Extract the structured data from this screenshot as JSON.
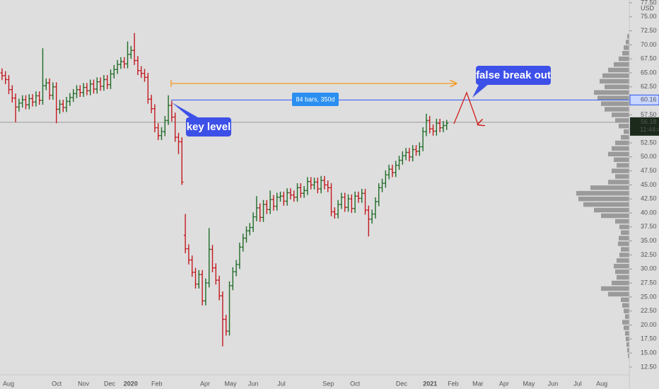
{
  "chart_data": {
    "type": "ohlc",
    "currency": "USD",
    "clock": "11:44:49",
    "up_color": "#1f6b27",
    "down_color": "#c2191f",
    "xlim": [
      -0.6,
      184.8
    ],
    "ylim": [
      11.1,
      78.0
    ],
    "xticks": [
      {
        "value": 1.9,
        "label": "Aug"
      },
      {
        "value": 16.1,
        "label": "Oct"
      },
      {
        "value": 24.0,
        "label": "Nov"
      },
      {
        "value": 31.7,
        "label": "Dec"
      },
      {
        "value": 37.9,
        "label": "2020"
      },
      {
        "value": 45.6,
        "label": "Feb"
      },
      {
        "value": 59.8,
        "label": "Apr"
      },
      {
        "value": 67.3,
        "label": "May"
      },
      {
        "value": 74.0,
        "label": "Jun"
      },
      {
        "value": 82.3,
        "label": "Jul"
      },
      {
        "value": 96.1,
        "label": "Sep"
      },
      {
        "value": 104.0,
        "label": "Oct"
      },
      {
        "value": 117.7,
        "label": "Dec"
      },
      {
        "value": 126.1,
        "label": "2021"
      },
      {
        "value": 132.9,
        "label": "Feb"
      },
      {
        "value": 140.2,
        "label": "Mar"
      },
      {
        "value": 147.9,
        "label": "Apr"
      },
      {
        "value": 155.2,
        "label": "May"
      },
      {
        "value": 162.3,
        "label": "Jun"
      },
      {
        "value": 169.6,
        "label": "Jul"
      },
      {
        "value": 176.7,
        "label": "Aug"
      }
    ],
    "yticks": [
      {
        "value": 12.5,
        "label": "12.50"
      },
      {
        "value": 15,
        "label": "15.00"
      },
      {
        "value": 17.5,
        "label": "17.50"
      },
      {
        "value": 20,
        "label": "20.00"
      },
      {
        "value": 22.5,
        "label": "22.50"
      },
      {
        "value": 25,
        "label": "25.00"
      },
      {
        "value": 27.5,
        "label": "27.50"
      },
      {
        "value": 30,
        "label": "30.00"
      },
      {
        "value": 32.5,
        "label": "32.50"
      },
      {
        "value": 35,
        "label": "35.00"
      },
      {
        "value": 37.5,
        "label": "37.50"
      },
      {
        "value": 40,
        "label": "40.00"
      },
      {
        "value": 42.5,
        "label": "42.50"
      },
      {
        "value": 45,
        "label": "45.00"
      },
      {
        "value": 47.5,
        "label": "47.50"
      },
      {
        "value": 50,
        "label": "50.00"
      },
      {
        "value": 52.5,
        "label": "52.50"
      },
      {
        "value": 55,
        "label": "55.00"
      },
      {
        "value": 57.5,
        "label": "57.50"
      },
      {
        "value": 60,
        "label": "60.00"
      },
      {
        "value": 62.5,
        "label": "62.50"
      },
      {
        "value": 65,
        "label": "65.00"
      },
      {
        "value": 67.5,
        "label": "67.50"
      },
      {
        "value": 70,
        "label": "70.00"
      },
      {
        "value": 72.5,
        "label": "72.50"
      },
      {
        "value": 75,
        "label": "75.00"
      },
      {
        "value": 77.5,
        "label": "77.50"
      }
    ],
    "x": [
      0,
      1,
      2,
      3,
      4,
      5,
      6,
      7,
      8,
      9,
      10,
      11,
      12,
      13,
      14,
      15,
      16,
      17,
      18,
      19,
      20,
      21,
      22,
      23,
      24,
      25,
      26,
      27,
      28,
      29,
      30,
      31,
      32,
      33,
      34,
      35,
      36,
      37,
      38,
      39,
      40,
      41,
      42,
      43,
      44,
      45,
      46,
      47,
      48,
      49,
      50,
      51,
      52,
      53,
      54,
      55,
      56,
      57,
      58,
      59,
      60,
      61,
      62,
      63,
      64,
      65,
      66,
      67,
      68,
      69,
      70,
      71,
      72,
      73,
      74,
      75,
      76,
      77,
      78,
      79,
      80,
      81,
      82,
      83,
      84,
      85,
      86,
      87,
      88,
      89,
      90,
      91,
      92,
      93,
      94,
      95,
      96,
      97,
      98,
      99,
      100,
      101,
      102,
      103,
      104,
      105,
      106,
      107,
      108,
      109,
      110,
      111,
      112,
      113,
      114,
      115,
      116,
      117,
      118,
      119,
      120,
      121,
      122,
      123,
      124,
      125,
      126,
      127,
      128,
      129,
      130,
      131
    ],
    "open": [
      65.0,
      64.5,
      63.8,
      62.0,
      60.5,
      58.9,
      59.6,
      60.2,
      59.3,
      60.4,
      59.8,
      60.9,
      60.1,
      62.7,
      63.2,
      61.0,
      62.5,
      58.5,
      59.4,
      58.8,
      59.9,
      60.6,
      61.3,
      62.0,
      61.5,
      62.4,
      61.8,
      63.0,
      62.1,
      63.4,
      62.6,
      63.8,
      62.9,
      64.8,
      65.6,
      66.5,
      67.0,
      66.6,
      68.3,
      69.0,
      67.2,
      65.4,
      64.9,
      64.2,
      60.3,
      58.6,
      55.2,
      53.8,
      54.5,
      56.5,
      59.2,
      57.1,
      53.5,
      52.7,
      36.0,
      33.6,
      31.6,
      29.4,
      27.3,
      29.0,
      24.3,
      27.5,
      33.5,
      30.2,
      28.0,
      25.2,
      21.0,
      18.9,
      27.0,
      29.5,
      30.8,
      33.9,
      35.5,
      36.8,
      37.4,
      39.3,
      40.9,
      39.2,
      41.5,
      40.6,
      42.4,
      41.2,
      42.8,
      43.0,
      42.1,
      43.6,
      43.2,
      42.8,
      44.5,
      43.5,
      44.0,
      45.6,
      45.0,
      45.5,
      44.3,
      45.8,
      45.0,
      44.5,
      40.2,
      39.8,
      41.5,
      42.8,
      41.0,
      42.5,
      40.8,
      43.0,
      42.6,
      43.5,
      40.5,
      38.9,
      39.8,
      42.0,
      44.5,
      45.3,
      46.8,
      47.8,
      47.2,
      48.5,
      49.4,
      50.2,
      50.8,
      50.0,
      51.3,
      51.0,
      51.8,
      54.5,
      56.5,
      55.0,
      54.6,
      56.0,
      55.2,
      55.6
    ],
    "high": [
      65.8,
      65.3,
      64.6,
      62.8,
      61.3,
      60.4,
      61.0,
      61.0,
      61.2,
      61.2,
      61.7,
      61.7,
      69.4,
      64.0,
      64.0,
      63.3,
      63.3,
      60.2,
      60.2,
      60.7,
      61.4,
      62.1,
      62.8,
      62.8,
      63.2,
      63.2,
      63.8,
      63.8,
      64.2,
      64.2,
      64.6,
      64.6,
      65.6,
      66.4,
      67.3,
      67.8,
      67.8,
      70.6,
      69.8,
      72.1,
      68.0,
      66.2,
      65.7,
      65.0,
      61.1,
      59.4,
      56.0,
      55.3,
      57.3,
      61.0,
      60.0,
      57.9,
      54.3,
      53.5,
      39.8,
      34.4,
      32.4,
      30.2,
      29.8,
      29.8,
      28.3,
      37.3,
      34.3,
      31.0,
      28.8,
      26.0,
      21.8,
      27.8,
      30.3,
      31.6,
      34.7,
      36.3,
      37.6,
      38.2,
      40.1,
      43.0,
      41.7,
      42.3,
      42.3,
      44.0,
      43.2,
      43.6,
      43.8,
      43.8,
      44.4,
      44.4,
      44.0,
      45.3,
      45.3,
      44.8,
      46.4,
      46.4,
      46.3,
      46.3,
      46.6,
      46.6,
      45.8,
      45.3,
      41.0,
      42.3,
      43.6,
      43.6,
      43.3,
      43.3,
      43.8,
      43.8,
      44.3,
      44.3,
      41.3,
      40.6,
      42.8,
      45.3,
      46.1,
      47.6,
      48.6,
      48.6,
      49.3,
      50.2,
      51.0,
      51.6,
      51.6,
      52.1,
      52.1,
      52.6,
      55.3,
      57.7,
      57.3,
      55.8,
      56.8,
      56.8,
      56.4,
      56.6
    ],
    "low": [
      63.7,
      63.0,
      61.2,
      59.7,
      56.2,
      58.1,
      58.8,
      58.5,
      58.5,
      59.0,
      59.0,
      59.3,
      59.3,
      61.9,
      60.2,
      60.2,
      56.0,
      57.7,
      58.0,
      58.0,
      59.1,
      59.8,
      60.5,
      60.7,
      60.7,
      61.0,
      61.0,
      61.3,
      61.3,
      61.8,
      61.8,
      62.1,
      62.1,
      64.0,
      64.8,
      65.7,
      65.8,
      65.8,
      67.5,
      66.4,
      64.6,
      64.1,
      63.4,
      59.5,
      57.8,
      54.4,
      53.0,
      53.0,
      53.7,
      55.7,
      56.3,
      52.7,
      50.5,
      45.0,
      32.8,
      30.8,
      28.6,
      26.5,
      26.5,
      23.5,
      23.5,
      26.7,
      29.4,
      27.2,
      24.4,
      16.2,
      18.1,
      18.1,
      26.2,
      28.7,
      30.0,
      33.1,
      34.7,
      36.0,
      36.6,
      38.5,
      38.4,
      38.4,
      39.8,
      39.8,
      40.4,
      40.4,
      42.0,
      41.3,
      41.3,
      42.4,
      42.0,
      42.0,
      42.7,
      42.7,
      43.2,
      44.2,
      44.2,
      43.5,
      43.5,
      44.2,
      43.7,
      39.4,
      39.0,
      39.0,
      40.7,
      40.2,
      40.2,
      40.0,
      40.0,
      41.8,
      41.8,
      39.7,
      35.8,
      38.1,
      39.0,
      41.2,
      43.7,
      44.5,
      46.0,
      46.4,
      46.4,
      47.7,
      48.6,
      49.4,
      49.2,
      49.2,
      50.2,
      50.2,
      51.0,
      53.7,
      54.2,
      53.8,
      53.8,
      54.4,
      54.4,
      54.8
    ],
    "close": [
      64.5,
      63.8,
      62.0,
      60.5,
      58.9,
      59.6,
      60.2,
      59.3,
      60.4,
      59.8,
      60.9,
      60.1,
      62.7,
      63.2,
      61.0,
      62.5,
      58.5,
      59.4,
      58.8,
      59.9,
      60.6,
      61.3,
      62.0,
      61.5,
      62.4,
      61.8,
      63.0,
      62.1,
      63.4,
      62.6,
      63.8,
      62.9,
      64.8,
      65.6,
      66.5,
      67.0,
      66.6,
      68.3,
      69.0,
      67.2,
      65.4,
      64.9,
      64.2,
      60.3,
      58.6,
      55.2,
      53.8,
      54.5,
      56.5,
      59.2,
      57.1,
      53.5,
      52.7,
      45.5,
      33.6,
      31.6,
      29.4,
      27.3,
      29.0,
      24.3,
      27.5,
      33.5,
      30.2,
      28.0,
      25.2,
      21.0,
      18.9,
      27.0,
      29.5,
      30.8,
      33.9,
      35.5,
      36.8,
      37.4,
      39.3,
      40.9,
      39.2,
      41.5,
      40.6,
      42.4,
      41.2,
      42.8,
      43.0,
      42.1,
      43.6,
      43.2,
      42.8,
      44.5,
      43.5,
      44.0,
      45.6,
      45.0,
      45.5,
      44.3,
      45.8,
      45.0,
      44.5,
      40.2,
      39.8,
      41.5,
      42.8,
      41.0,
      42.5,
      40.8,
      43.0,
      42.6,
      43.5,
      40.5,
      38.9,
      39.8,
      42.0,
      44.5,
      45.3,
      46.8,
      47.8,
      47.2,
      48.5,
      49.4,
      50.2,
      50.8,
      50.0,
      51.3,
      51.0,
      51.8,
      54.5,
      56.5,
      55.0,
      54.6,
      56.0,
      55.2,
      55.6,
      56.0
    ],
    "price_lines": [
      {
        "value": 60.16,
        "label": "60.16",
        "color": "#2e55f0"
      },
      {
        "value": 56.18,
        "label": "56.18",
        "color": "#9a9a9a"
      }
    ],
    "volume_profile": {
      "color": "#9a9a9a",
      "levels": [
        14,
        15,
        16,
        17,
        18,
        19,
        20,
        21,
        22,
        23,
        24,
        25,
        26,
        27,
        28,
        29,
        30,
        31,
        32,
        33,
        34,
        35,
        36,
        37,
        38,
        39,
        40,
        41,
        42,
        43,
        44,
        45,
        46,
        47,
        48,
        49,
        50,
        51,
        52,
        53,
        54,
        55,
        56,
        57,
        58,
        59,
        60,
        61,
        62,
        63,
        64,
        65,
        66,
        67,
        68,
        69,
        70,
        71
      ],
      "values": [
        2,
        3,
        4,
        5,
        6,
        8,
        10,
        6,
        8,
        10,
        12,
        30,
        40,
        25,
        18,
        20,
        22,
        18,
        14,
        12,
        16,
        15,
        12,
        14,
        20,
        40,
        50,
        65,
        72,
        75,
        55,
        30,
        20,
        25,
        18,
        22,
        30,
        25,
        20,
        12,
        8,
        15,
        20,
        25,
        35,
        40,
        45,
        50,
        35,
        42,
        38,
        30,
        22,
        15,
        10,
        8,
        5,
        3
      ]
    },
    "annotations": {
      "range": "84 bars, 350d",
      "key_level": "key level",
      "false_breakout": "false break out"
    }
  }
}
